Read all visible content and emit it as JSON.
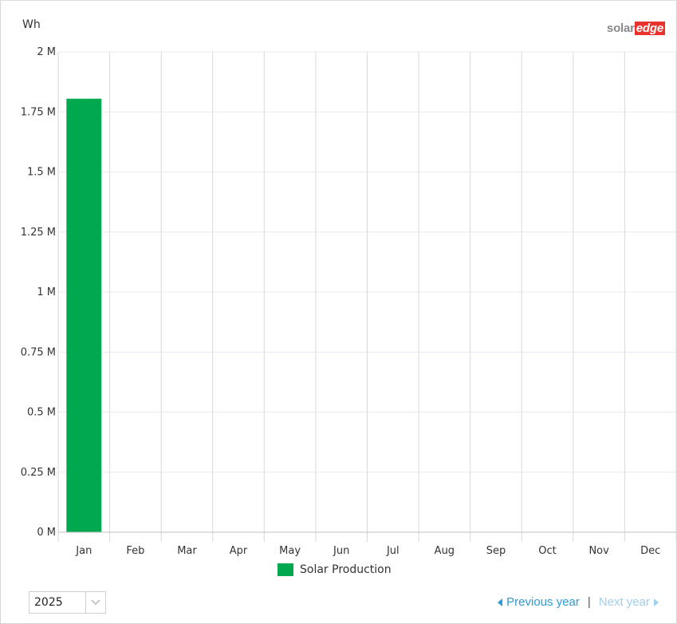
{
  "brand": {
    "part1": "solar",
    "part2": "edge"
  },
  "chart_data": {
    "type": "bar",
    "unit_label": "Wh",
    "categories": [
      "Jan",
      "Feb",
      "Mar",
      "Apr",
      "May",
      "Jun",
      "Jul",
      "Aug",
      "Sep",
      "Oct",
      "Nov",
      "Dec"
    ],
    "series": [
      {
        "name": "Solar Production",
        "color": "#00a94f",
        "values": [
          1805000,
          0,
          0,
          0,
          0,
          0,
          0,
          0,
          0,
          0,
          0,
          0
        ]
      }
    ],
    "ylim": [
      0,
      2000000
    ],
    "yticks": [
      {
        "value": 0,
        "label": "0 M"
      },
      {
        "value": 250000,
        "label": "0.25 M"
      },
      {
        "value": 500000,
        "label": "0.5 M"
      },
      {
        "value": 750000,
        "label": "0.75 M"
      },
      {
        "value": 1000000,
        "label": "1 M"
      },
      {
        "value": 1250000,
        "label": "1.25 M"
      },
      {
        "value": 1500000,
        "label": "1.5 M"
      },
      {
        "value": 1750000,
        "label": "1.75 M"
      },
      {
        "value": 2000000,
        "label": "2 M"
      }
    ],
    "grid": true,
    "legend_position": "bottom-center",
    "colors": {
      "grid": "#e6ecf2",
      "vgrid": "#d9d9d9",
      "axis": "#c0c0c0"
    }
  },
  "controls": {
    "year_value": "2025",
    "previous_label": "Previous year",
    "separator": "|",
    "next_label": "Next year"
  }
}
